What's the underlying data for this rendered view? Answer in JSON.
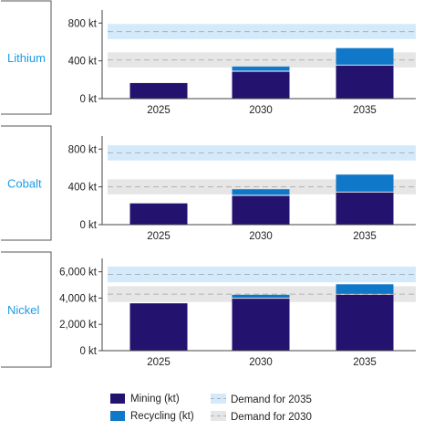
{
  "legend": {
    "mining": "Mining  (kt)",
    "recycling": "Recycling  (kt)",
    "demand_2035": "Demand for 2035",
    "demand_2030": "Demand for 2030"
  },
  "colors": {
    "mining": "#23126e",
    "recycling": "#0f78c9",
    "demand_2035_band": "#d4eafa",
    "demand_2030_band": "#e6e6e6",
    "mineral_label": "#1e9be3"
  },
  "chart_data": [
    {
      "type": "bar",
      "stacked": true,
      "title": "Lithium",
      "categories": [
        "2025",
        "2030",
        "2035"
      ],
      "series": [
        {
          "name": "Mining  (kt)",
          "values": [
            165,
            285,
            350
          ]
        },
        {
          "name": "Recycling  (kt)",
          "values": [
            0,
            55,
            185
          ]
        }
      ],
      "demand": {
        "Demand for 2035": 710,
        "Demand for 2030": 410
      },
      "demand_band_halfwidth": 80,
      "ylim": [
        0,
        880
      ],
      "yticks": [
        0,
        400,
        800
      ],
      "ytick_labels": [
        "0 kt",
        "400 kt",
        "800 kt"
      ],
      "grid": false
    },
    {
      "type": "bar",
      "stacked": true,
      "title": "Cobalt",
      "categories": [
        "2025",
        "2030",
        "2035"
      ],
      "series": [
        {
          "name": "Mining  (kt)",
          "values": [
            225,
            305,
            340
          ]
        },
        {
          "name": "Recycling  (kt)",
          "values": [
            0,
            70,
            190
          ]
        }
      ],
      "demand": {
        "Demand for 2035": 760,
        "Demand for 2030": 400
      },
      "demand_band_halfwidth": 80,
      "ylim": [
        0,
        880
      ],
      "yticks": [
        0,
        400,
        800
      ],
      "ytick_labels": [
        "0 kt",
        "400 kt",
        "800 kt"
      ],
      "grid": false
    },
    {
      "type": "bar",
      "stacked": true,
      "title": "Nickel",
      "categories": [
        "2025",
        "2030",
        "2035"
      ],
      "series": [
        {
          "name": "Mining  (kt)",
          "values": [
            3600,
            3950,
            4250
          ]
        },
        {
          "name": "Recycling  (kt)",
          "values": [
            0,
            300,
            800
          ]
        }
      ],
      "demand": {
        "Demand for 2035": 5800,
        "Demand for 2030": 4300
      },
      "demand_band_halfwidth": 600,
      "ylim": [
        0,
        6600
      ],
      "yticks": [
        0,
        2000,
        4000,
        6000
      ],
      "ytick_labels": [
        "0 kt",
        "2,000 kt",
        "4,000 kt",
        "6,000 kt"
      ],
      "grid": false
    }
  ]
}
